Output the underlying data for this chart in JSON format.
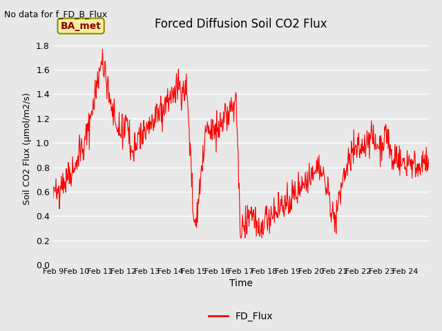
{
  "title": "Forced Diffusion Soil CO2 Flux",
  "xlabel": "Time",
  "ylabel": "Soil CO2 Flux (μmol/m2/s)",
  "no_data_label": "No data for f_FD_B_Flux",
  "ba_label": "BA_met",
  "legend_label": "FD_Flux",
  "ylim": [
    0.0,
    1.9
  ],
  "yticks": [
    0.0,
    0.2,
    0.4,
    0.6,
    0.8,
    1.0,
    1.2,
    1.4,
    1.6,
    1.8
  ],
  "line_color": "red",
  "bg_color": "#e8e8e8",
  "plot_bg_color": "#e8e8e8",
  "grid_color": "white",
  "x_tick_labels": [
    "Feb 9",
    "Feb 10",
    "Feb 11",
    "Feb 12",
    "Feb 13",
    "Feb 14",
    "Feb 15",
    "Feb 16",
    "Feb 17",
    "Feb 18",
    "Feb 19",
    "Feb 20",
    "Feb 21",
    "Feb 22",
    "Feb 23",
    "Feb 24"
  ],
  "seed": 42
}
